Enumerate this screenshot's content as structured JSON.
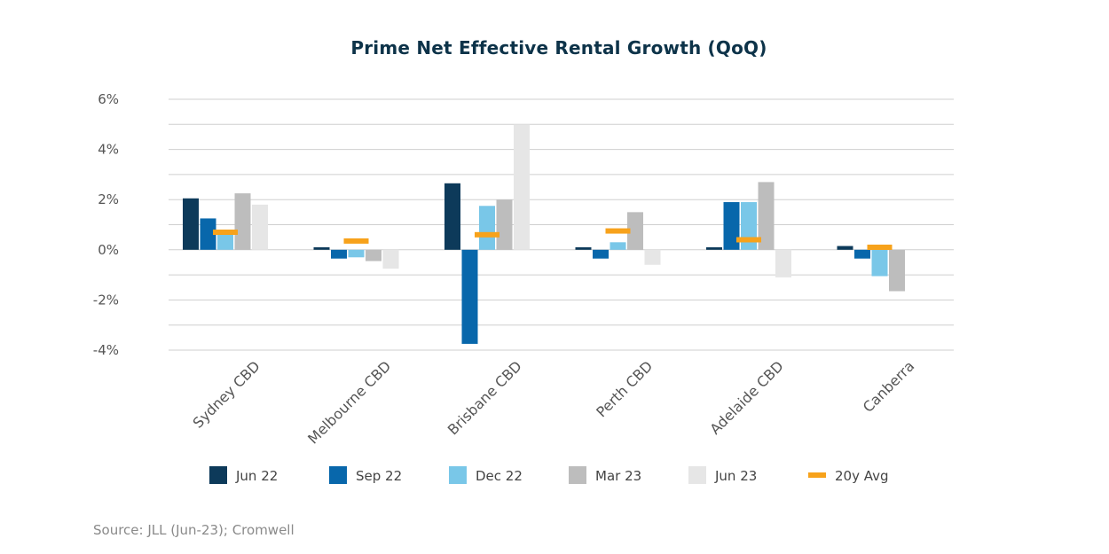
{
  "chart_data": {
    "type": "bar",
    "title": "Prime Net Effective Rental Growth (QoQ)",
    "xlabel": "",
    "ylabel": "",
    "ylim": [
      -4,
      6
    ],
    "yticks": [
      6,
      4,
      2,
      0,
      -2,
      -4
    ],
    "ytick_labels": [
      "6%",
      "4%",
      "2%",
      "0%",
      "-2%",
      "-4%"
    ],
    "grid": true,
    "legend_position": "bottom",
    "categories": [
      "Sydney CBD",
      "Melbourne CBD",
      "Brisbane CBD",
      "Perth CBD",
      "Adelaide CBD",
      "Canberra"
    ],
    "series": [
      {
        "name": "Jun 22",
        "color": "#0d3a5a",
        "values": [
          2.05,
          0.1,
          2.65,
          0.1,
          0.1,
          0.15
        ]
      },
      {
        "name": "Sep 22",
        "color": "#0867ab",
        "values": [
          1.25,
          -0.35,
          -3.75,
          -0.35,
          1.9,
          -0.35
        ]
      },
      {
        "name": "Dec 22",
        "color": "#79c7e8",
        "values": [
          0.65,
          -0.3,
          1.75,
          0.3,
          1.9,
          -1.05
        ]
      },
      {
        "name": "Mar 23",
        "color": "#bdbdbd",
        "values": [
          2.25,
          -0.45,
          2.0,
          1.5,
          2.7,
          -1.65
        ]
      },
      {
        "name": "Jun 23",
        "color": "#e6e6e6",
        "values": [
          1.8,
          -0.75,
          5.0,
          -0.6,
          -1.1,
          0.0
        ]
      }
    ],
    "avg_series": {
      "name": "20y Avg",
      "color": "#f7a21b",
      "values": [
        0.7,
        0.35,
        0.6,
        0.75,
        0.4,
        0.1
      ]
    }
  },
  "source": "Source: JLL (Jun-23); Cromwell"
}
